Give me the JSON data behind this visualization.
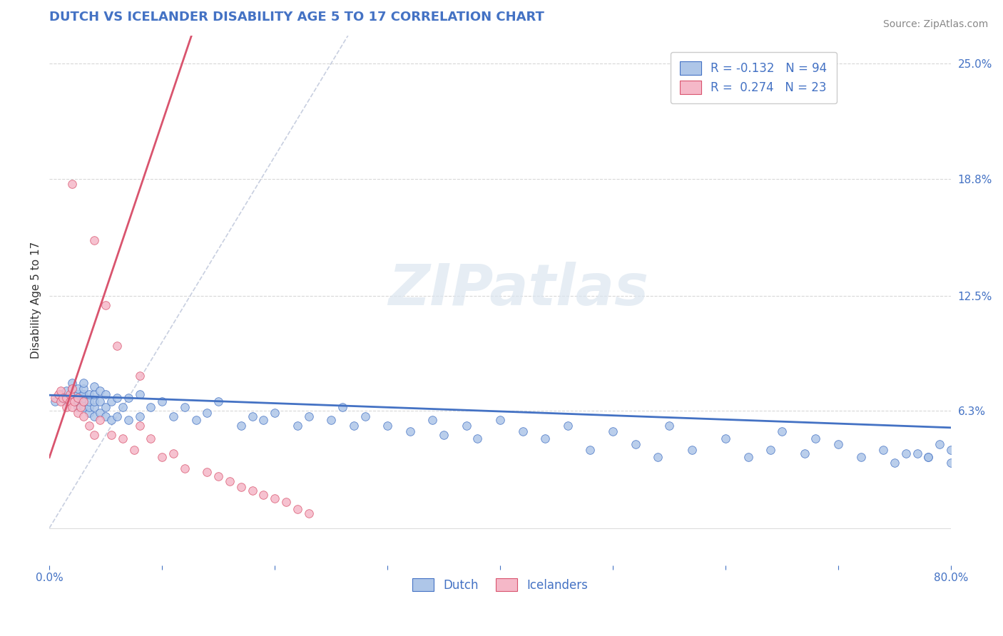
{
  "title": "DUTCH VS ICELANDER DISABILITY AGE 5 TO 17 CORRELATION CHART",
  "source_text": "Source: ZipAtlas.com",
  "xlabel": "",
  "ylabel": "Disability Age 5 to 17",
  "xlim": [
    0.0,
    0.8
  ],
  "ylim": [
    -0.02,
    0.265
  ],
  "ylim_display": [
    0.0,
    0.25
  ],
  "xticks": [
    0.0,
    0.1,
    0.2,
    0.3,
    0.4,
    0.5,
    0.6,
    0.7,
    0.8
  ],
  "xticklabels": [
    "0.0%",
    "",
    "",
    "",
    "",
    "",
    "",
    "",
    "80.0%"
  ],
  "ytick_labels_right": [
    "6.3%",
    "12.5%",
    "18.8%",
    "25.0%"
  ],
  "ytick_vals_right": [
    0.063,
    0.125,
    0.188,
    0.25
  ],
  "legend_R_dutch": "-0.132",
  "legend_N_dutch": "94",
  "legend_R_icelander": "0.274",
  "legend_N_icelander": "23",
  "dutch_color": "#aec6e8",
  "icelander_color": "#f5b8c8",
  "dutch_line_color": "#4472c4",
  "icelander_line_color": "#d9546e",
  "title_color": "#4472c4",
  "label_color": "#4472c4",
  "watermark_color": "#dce6f0",
  "background_color": "#ffffff",
  "grid_color": "#d8d8d8",
  "diagonal_color": "#c8cfe0",
  "dutch_scatter_x": [
    0.005,
    0.01,
    0.01,
    0.015,
    0.015,
    0.02,
    0.02,
    0.02,
    0.02,
    0.025,
    0.025,
    0.025,
    0.025,
    0.025,
    0.03,
    0.03,
    0.03,
    0.03,
    0.03,
    0.03,
    0.035,
    0.035,
    0.035,
    0.035,
    0.04,
    0.04,
    0.04,
    0.04,
    0.04,
    0.045,
    0.045,
    0.045,
    0.05,
    0.05,
    0.05,
    0.055,
    0.055,
    0.06,
    0.06,
    0.065,
    0.07,
    0.07,
    0.08,
    0.08,
    0.09,
    0.1,
    0.11,
    0.12,
    0.13,
    0.14,
    0.15,
    0.17,
    0.18,
    0.19,
    0.2,
    0.22,
    0.23,
    0.25,
    0.26,
    0.27,
    0.28,
    0.3,
    0.32,
    0.34,
    0.35,
    0.37,
    0.38,
    0.4,
    0.42,
    0.44,
    0.46,
    0.48,
    0.5,
    0.52,
    0.54,
    0.55,
    0.57,
    0.6,
    0.62,
    0.64,
    0.65,
    0.67,
    0.68,
    0.7,
    0.72,
    0.74,
    0.75,
    0.77,
    0.78,
    0.79,
    0.8,
    0.8,
    0.78,
    0.76
  ],
  "dutch_scatter_y": [
    0.068,
    0.07,
    0.072,
    0.068,
    0.074,
    0.07,
    0.072,
    0.075,
    0.078,
    0.065,
    0.068,
    0.07,
    0.072,
    0.075,
    0.065,
    0.068,
    0.07,
    0.072,
    0.075,
    0.078,
    0.062,
    0.065,
    0.068,
    0.072,
    0.06,
    0.065,
    0.068,
    0.072,
    0.076,
    0.062,
    0.068,
    0.074,
    0.06,
    0.065,
    0.072,
    0.058,
    0.068,
    0.06,
    0.07,
    0.065,
    0.058,
    0.07,
    0.06,
    0.072,
    0.065,
    0.068,
    0.06,
    0.065,
    0.058,
    0.062,
    0.068,
    0.055,
    0.06,
    0.058,
    0.062,
    0.055,
    0.06,
    0.058,
    0.065,
    0.055,
    0.06,
    0.055,
    0.052,
    0.058,
    0.05,
    0.055,
    0.048,
    0.058,
    0.052,
    0.048,
    0.055,
    0.042,
    0.052,
    0.045,
    0.038,
    0.055,
    0.042,
    0.048,
    0.038,
    0.042,
    0.052,
    0.04,
    0.048,
    0.045,
    0.038,
    0.042,
    0.035,
    0.04,
    0.038,
    0.045,
    0.035,
    0.042,
    0.038,
    0.04
  ],
  "icelander_scatter_x": [
    0.005,
    0.008,
    0.01,
    0.01,
    0.012,
    0.015,
    0.015,
    0.018,
    0.018,
    0.02,
    0.02,
    0.022,
    0.025,
    0.025,
    0.028,
    0.03,
    0.03,
    0.035,
    0.04,
    0.045,
    0.055,
    0.065,
    0.075,
    0.08,
    0.09,
    0.1,
    0.11,
    0.12,
    0.14,
    0.15,
    0.16,
    0.17,
    0.18,
    0.19,
    0.2,
    0.21,
    0.22,
    0.23
  ],
  "icelander_scatter_y": [
    0.07,
    0.072,
    0.068,
    0.074,
    0.07,
    0.065,
    0.07,
    0.068,
    0.072,
    0.065,
    0.075,
    0.068,
    0.062,
    0.07,
    0.065,
    0.06,
    0.068,
    0.055,
    0.05,
    0.058,
    0.05,
    0.048,
    0.042,
    0.055,
    0.048,
    0.038,
    0.04,
    0.032,
    0.03,
    0.028,
    0.025,
    0.022,
    0.02,
    0.018,
    0.016,
    0.014,
    0.01,
    0.008
  ],
  "icelander_highpoints_x": [
    0.02,
    0.04,
    0.05,
    0.06,
    0.08
  ],
  "icelander_highpoints_y": [
    0.185,
    0.155,
    0.12,
    0.098,
    0.082
  ]
}
